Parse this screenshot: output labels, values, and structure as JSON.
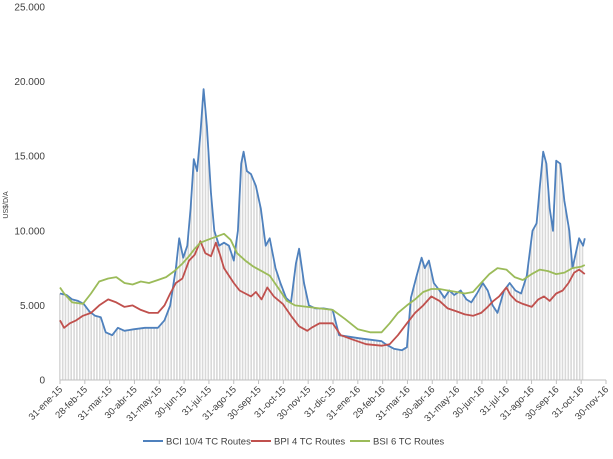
{
  "chart_data": {
    "type": "line",
    "ylabel": "US$/D/A",
    "ylim": [
      0,
      25000
    ],
    "yticks": [
      0,
      5000,
      10000,
      15000,
      20000,
      25000
    ],
    "ytick_labels": [
      "0",
      "5.000",
      "10.000",
      "15.000",
      "20.000",
      "25.000"
    ],
    "xlim": [
      "2015-01-31",
      "2016-11-30"
    ],
    "xtick_labels": [
      "31-ene-15",
      "28-feb-15",
      "31-mar-15",
      "30-abr-15",
      "31-may-15",
      "30-jun-15",
      "31-jul-15",
      "31-ago-15",
      "30-sep-15",
      "31-oct-15",
      "30-nov-15",
      "31-dic-15",
      "31-ene-16",
      "29-feb-16",
      "31-mar-16",
      "30-abr-16",
      "31-may-16",
      "30-jun-16",
      "31-jul-16",
      "31-ago-16",
      "30-sep-16",
      "31-oct-16",
      "30-nov-16"
    ],
    "grid": false,
    "legend": "bottom",
    "background_bars": {
      "color": "#d9d9d9",
      "note_values_follow": "BCI 10/4 TC Routes"
    },
    "series": [
      {
        "name": "BCI 10/4 TC Routes",
        "color": "#4f81bd",
        "points": [
          [
            "2015-01-31",
            5800
          ],
          [
            "2015-02-08",
            5700
          ],
          [
            "2015-02-15",
            5400
          ],
          [
            "2015-02-22",
            5300
          ],
          [
            "2015-03-01",
            5100
          ],
          [
            "2015-03-08",
            4600
          ],
          [
            "2015-03-15",
            4300
          ],
          [
            "2015-03-22",
            4200
          ],
          [
            "2015-03-28",
            3200
          ],
          [
            "2015-04-05",
            3000
          ],
          [
            "2015-04-12",
            3500
          ],
          [
            "2015-04-20",
            3300
          ],
          [
            "2015-05-01",
            3400
          ],
          [
            "2015-05-15",
            3500
          ],
          [
            "2015-05-31",
            3500
          ],
          [
            "2015-06-08",
            4000
          ],
          [
            "2015-06-15",
            5000
          ],
          [
            "2015-06-22",
            7500
          ],
          [
            "2015-06-26",
            9500
          ],
          [
            "2015-07-01",
            8200
          ],
          [
            "2015-07-06",
            9000
          ],
          [
            "2015-07-10",
            11500
          ],
          [
            "2015-07-14",
            14800
          ],
          [
            "2015-07-18",
            14000
          ],
          [
            "2015-07-22",
            16500
          ],
          [
            "2015-07-26",
            19500
          ],
          [
            "2015-07-30",
            17000
          ],
          [
            "2015-08-04",
            12500
          ],
          [
            "2015-08-08",
            10000
          ],
          [
            "2015-08-14",
            9000
          ],
          [
            "2015-08-20",
            9200
          ],
          [
            "2015-08-26",
            9000
          ],
          [
            "2015-09-01",
            8000
          ],
          [
            "2015-09-06",
            10000
          ],
          [
            "2015-09-10",
            14500
          ],
          [
            "2015-09-13",
            15300
          ],
          [
            "2015-09-17",
            14000
          ],
          [
            "2015-09-22",
            13800
          ],
          [
            "2015-09-28",
            13000
          ],
          [
            "2015-10-04",
            11500
          ],
          [
            "2015-10-10",
            9000
          ],
          [
            "2015-10-15",
            9500
          ],
          [
            "2015-10-22",
            7500
          ],
          [
            "2015-10-28",
            6500
          ],
          [
            "2015-11-04",
            5500
          ],
          [
            "2015-11-10",
            5200
          ],
          [
            "2015-11-16",
            7800
          ],
          [
            "2015-11-20",
            8800
          ],
          [
            "2015-11-26",
            6500
          ],
          [
            "2015-12-02",
            5000
          ],
          [
            "2015-12-10",
            4800
          ],
          [
            "2015-12-20",
            4800
          ],
          [
            "2015-12-31",
            4700
          ],
          [
            "2016-01-08",
            3000
          ],
          [
            "2016-01-20",
            2900
          ],
          [
            "2016-02-01",
            2800
          ],
          [
            "2016-02-15",
            2700
          ],
          [
            "2016-02-29",
            2600
          ],
          [
            "2016-03-05",
            2400
          ],
          [
            "2016-03-15",
            2100
          ],
          [
            "2016-03-25",
            2000
          ],
          [
            "2016-03-31",
            2200
          ],
          [
            "2016-04-05",
            5500
          ],
          [
            "2016-04-12",
            7000
          ],
          [
            "2016-04-18",
            8200
          ],
          [
            "2016-04-22",
            7500
          ],
          [
            "2016-04-27",
            8000
          ],
          [
            "2016-05-03",
            6500
          ],
          [
            "2016-05-10",
            6000
          ],
          [
            "2016-05-16",
            5500
          ],
          [
            "2016-05-22",
            6000
          ],
          [
            "2016-05-28",
            5700
          ],
          [
            "2016-06-05",
            6000
          ],
          [
            "2016-06-12",
            5400
          ],
          [
            "2016-06-18",
            5200
          ],
          [
            "2016-06-25",
            5800
          ],
          [
            "2016-07-02",
            6500
          ],
          [
            "2016-07-08",
            6000
          ],
          [
            "2016-07-14",
            5000
          ],
          [
            "2016-07-20",
            4500
          ],
          [
            "2016-07-28",
            6000
          ],
          [
            "2016-08-04",
            6500
          ],
          [
            "2016-08-11",
            6000
          ],
          [
            "2016-08-18",
            5800
          ],
          [
            "2016-08-25",
            7000
          ],
          [
            "2016-09-01",
            10000
          ],
          [
            "2016-09-06",
            10500
          ],
          [
            "2016-09-10",
            13000
          ],
          [
            "2016-09-14",
            15300
          ],
          [
            "2016-09-18",
            14500
          ],
          [
            "2016-09-22",
            11500
          ],
          [
            "2016-09-26",
            10000
          ],
          [
            "2016-09-30",
            14700
          ],
          [
            "2016-10-05",
            14500
          ],
          [
            "2016-10-10",
            12000
          ],
          [
            "2016-10-16",
            10000
          ],
          [
            "2016-10-20",
            7500
          ],
          [
            "2016-10-24",
            8500
          ],
          [
            "2016-10-28",
            9500
          ],
          [
            "2016-11-02",
            9000
          ],
          [
            "2016-11-04",
            9500
          ]
        ]
      },
      {
        "name": "BPI 4 TC Routes",
        "color": "#c0504d",
        "points": [
          [
            "2015-01-31",
            4000
          ],
          [
            "2015-02-05",
            3500
          ],
          [
            "2015-02-12",
            3800
          ],
          [
            "2015-02-20",
            4000
          ],
          [
            "2015-02-28",
            4300
          ],
          [
            "2015-03-10",
            4500
          ],
          [
            "2015-03-20",
            5000
          ],
          [
            "2015-03-31",
            5400
          ],
          [
            "2015-04-10",
            5200
          ],
          [
            "2015-04-20",
            4900
          ],
          [
            "2015-04-30",
            5000
          ],
          [
            "2015-05-10",
            4700
          ],
          [
            "2015-05-20",
            4500
          ],
          [
            "2015-05-31",
            4500
          ],
          [
            "2015-06-08",
            5000
          ],
          [
            "2015-06-15",
            5800
          ],
          [
            "2015-06-22",
            6500
          ],
          [
            "2015-06-30",
            6800
          ],
          [
            "2015-07-08",
            8000
          ],
          [
            "2015-07-15",
            8400
          ],
          [
            "2015-07-22",
            9300
          ],
          [
            "2015-07-28",
            8500
          ],
          [
            "2015-08-04",
            8300
          ],
          [
            "2015-08-10",
            9200
          ],
          [
            "2015-08-15",
            8400
          ],
          [
            "2015-08-20",
            7500
          ],
          [
            "2015-08-26",
            7000
          ],
          [
            "2015-09-01",
            6500
          ],
          [
            "2015-09-08",
            6000
          ],
          [
            "2015-09-15",
            5800
          ],
          [
            "2015-09-22",
            5600
          ],
          [
            "2015-09-28",
            5900
          ],
          [
            "2015-10-05",
            5400
          ],
          [
            "2015-10-12",
            6200
          ],
          [
            "2015-10-20",
            5600
          ],
          [
            "2015-10-31",
            5100
          ],
          [
            "2015-11-10",
            4300
          ],
          [
            "2015-11-20",
            3600
          ],
          [
            "2015-11-30",
            3300
          ],
          [
            "2015-12-05",
            3500
          ],
          [
            "2015-12-15",
            3800
          ],
          [
            "2015-12-31",
            3800
          ],
          [
            "2016-01-10",
            3000
          ],
          [
            "2016-01-25",
            2700
          ],
          [
            "2016-02-10",
            2400
          ],
          [
            "2016-02-29",
            2300
          ],
          [
            "2016-03-10",
            2400
          ],
          [
            "2016-03-20",
            3000
          ],
          [
            "2016-03-31",
            3800
          ],
          [
            "2016-04-10",
            4500
          ],
          [
            "2016-04-20",
            5000
          ],
          [
            "2016-04-30",
            5600
          ],
          [
            "2016-05-10",
            5300
          ],
          [
            "2016-05-20",
            4800
          ],
          [
            "2016-05-31",
            4600
          ],
          [
            "2016-06-10",
            4400
          ],
          [
            "2016-06-20",
            4300
          ],
          [
            "2016-06-30",
            4500
          ],
          [
            "2016-07-08",
            4900
          ],
          [
            "2016-07-15",
            5300
          ],
          [
            "2016-07-22",
            5600
          ],
          [
            "2016-07-31",
            6200
          ],
          [
            "2016-08-05",
            5700
          ],
          [
            "2016-08-12",
            5300
          ],
          [
            "2016-08-20",
            5100
          ],
          [
            "2016-08-31",
            4900
          ],
          [
            "2016-09-08",
            5400
          ],
          [
            "2016-09-15",
            5600
          ],
          [
            "2016-09-22",
            5300
          ],
          [
            "2016-09-30",
            5800
          ],
          [
            "2016-10-08",
            6000
          ],
          [
            "2016-10-15",
            6500
          ],
          [
            "2016-10-22",
            7200
          ],
          [
            "2016-10-28",
            7400
          ],
          [
            "2016-11-04",
            7100
          ]
        ]
      },
      {
        "name": "BSI 6 TC Routes",
        "color": "#9bbb59",
        "points": [
          [
            "2015-01-31",
            6200
          ],
          [
            "2015-02-05",
            5800
          ],
          [
            "2015-02-15",
            5200
          ],
          [
            "2015-02-28",
            5100
          ],
          [
            "2015-03-10",
            5800
          ],
          [
            "2015-03-20",
            6600
          ],
          [
            "2015-03-31",
            6800
          ],
          [
            "2015-04-10",
            6900
          ],
          [
            "2015-04-20",
            6500
          ],
          [
            "2015-04-30",
            6400
          ],
          [
            "2015-05-10",
            6600
          ],
          [
            "2015-05-20",
            6500
          ],
          [
            "2015-05-31",
            6700
          ],
          [
            "2015-06-10",
            6900
          ],
          [
            "2015-06-20",
            7300
          ],
          [
            "2015-06-30",
            7800
          ],
          [
            "2015-07-08",
            8300
          ],
          [
            "2015-07-15",
            8800
          ],
          [
            "2015-07-22",
            9200
          ],
          [
            "2015-07-31",
            9400
          ],
          [
            "2015-08-10",
            9600
          ],
          [
            "2015-08-20",
            9800
          ],
          [
            "2015-08-28",
            9400
          ],
          [
            "2015-09-05",
            8500
          ],
          [
            "2015-09-15",
            8000
          ],
          [
            "2015-09-25",
            7600
          ],
          [
            "2015-10-05",
            7300
          ],
          [
            "2015-10-15",
            7000
          ],
          [
            "2015-10-25",
            6200
          ],
          [
            "2015-11-05",
            5300
          ],
          [
            "2015-11-15",
            5000
          ],
          [
            "2015-11-30",
            4900
          ],
          [
            "2015-12-15",
            4800
          ],
          [
            "2015-12-31",
            4700
          ],
          [
            "2016-01-15",
            4100
          ],
          [
            "2016-01-31",
            3400
          ],
          [
            "2016-02-15",
            3200
          ],
          [
            "2016-02-29",
            3200
          ],
          [
            "2016-03-10",
            3800
          ],
          [
            "2016-03-20",
            4500
          ],
          [
            "2016-03-31",
            5000
          ],
          [
            "2016-04-10",
            5400
          ],
          [
            "2016-04-20",
            5900
          ],
          [
            "2016-04-30",
            6100
          ],
          [
            "2016-05-10",
            6100
          ],
          [
            "2016-05-20",
            6000
          ],
          [
            "2016-05-31",
            5900
          ],
          [
            "2016-06-10",
            5800
          ],
          [
            "2016-06-20",
            5900
          ],
          [
            "2016-06-30",
            6500
          ],
          [
            "2016-07-10",
            7100
          ],
          [
            "2016-07-20",
            7500
          ],
          [
            "2016-07-31",
            7400
          ],
          [
            "2016-08-10",
            6900
          ],
          [
            "2016-08-20",
            6700
          ],
          [
            "2016-08-31",
            7100
          ],
          [
            "2016-09-10",
            7400
          ],
          [
            "2016-09-20",
            7300
          ],
          [
            "2016-09-30",
            7100
          ],
          [
            "2016-10-10",
            7200
          ],
          [
            "2016-10-20",
            7500
          ],
          [
            "2016-10-31",
            7600
          ],
          [
            "2016-11-04",
            7700
          ]
        ]
      }
    ]
  }
}
